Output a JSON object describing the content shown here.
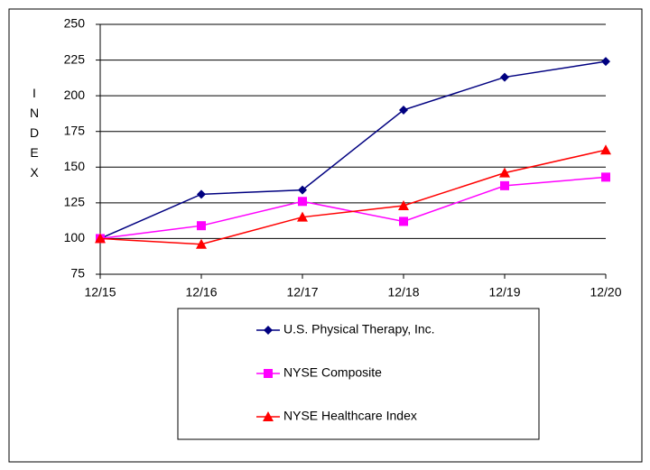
{
  "chart_data": {
    "type": "line",
    "y_label": "INDEX",
    "categories": [
      "12/15",
      "12/16",
      "12/17",
      "12/18",
      "12/19",
      "12/20"
    ],
    "series": [
      {
        "name": "U.S. Physical Therapy, Inc.",
        "color": "#000080",
        "marker": "diamond",
        "values": [
          100,
          131,
          134,
          190,
          213,
          224
        ]
      },
      {
        "name": "NYSE Composite",
        "color": "#ff00ff",
        "marker": "square",
        "values": [
          100,
          109,
          126,
          112,
          137,
          143
        ]
      },
      {
        "name": "NYSE Healthcare Index",
        "color": "#ff0000",
        "marker": "triangle",
        "values": [
          100,
          96,
          115,
          123,
          146,
          162
        ]
      }
    ],
    "ylim": [
      75,
      250
    ],
    "yticks": [
      75,
      100,
      125,
      150,
      175,
      200,
      225,
      250
    ],
    "grid": true
  }
}
